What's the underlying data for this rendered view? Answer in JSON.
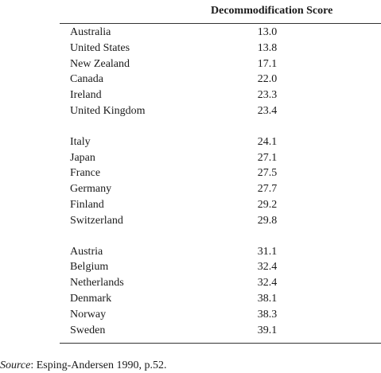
{
  "table": {
    "column_header": "Decommodification Score",
    "groups": [
      {
        "rows": [
          {
            "country": "Australia",
            "score": "13.0"
          },
          {
            "country": "United States",
            "score": "13.8"
          },
          {
            "country": "New Zealand",
            "score": "17.1"
          },
          {
            "country": "Canada",
            "score": "22.0"
          },
          {
            "country": "Ireland",
            "score": "23.3"
          },
          {
            "country": "United Kingdom",
            "score": "23.4"
          }
        ]
      },
      {
        "rows": [
          {
            "country": "Italy",
            "score": "24.1"
          },
          {
            "country": "Japan",
            "score": "27.1"
          },
          {
            "country": "France",
            "score": "27.5"
          },
          {
            "country": "Germany",
            "score": "27.7"
          },
          {
            "country": "Finland",
            "score": "29.2"
          },
          {
            "country": "Switzerland",
            "score": "29.8"
          }
        ]
      },
      {
        "rows": [
          {
            "country": "Austria",
            "score": "31.1"
          },
          {
            "country": "Belgium",
            "score": "32.4"
          },
          {
            "country": "Netherlands",
            "score": "32.4"
          },
          {
            "country": "Denmark",
            "score": "38.1"
          },
          {
            "country": "Norway",
            "score": "38.3"
          },
          {
            "country": "Sweden",
            "score": "39.1"
          }
        ]
      }
    ]
  },
  "source": {
    "label": "Source",
    "text": ": Esping-Andersen 1990, p.52."
  }
}
